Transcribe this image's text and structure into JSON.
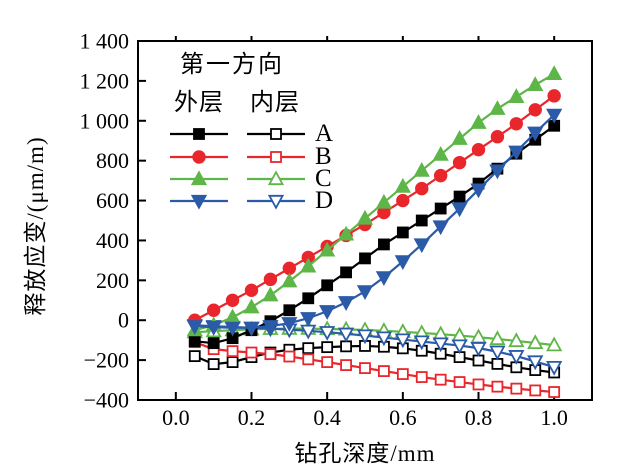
{
  "chart_data": {
    "type": "line",
    "title": "",
    "xlabel": "钻孔深度/mm",
    "ylabel": "释放应变/(μm/m)",
    "xlim": [
      -0.1,
      1.1
    ],
    "ylim": [
      -400,
      1400
    ],
    "grid": false,
    "xticks": [
      0.0,
      0.2,
      0.4,
      0.6,
      0.8,
      1.0
    ],
    "xtick_labels": [
      "0.0",
      "0.2",
      "0.4",
      "0.6",
      "0.8",
      "1.0"
    ],
    "yticks": [
      -400,
      -200,
      0,
      200,
      400,
      600,
      800,
      1000,
      1200,
      1400
    ],
    "ytick_labels": [
      "−400",
      "−200",
      "0",
      "200",
      "400",
      "600",
      "800",
      "1 000",
      "1 200",
      "1 400"
    ],
    "x": [
      0.05,
      0.1,
      0.15,
      0.2,
      0.25,
      0.3,
      0.35,
      0.4,
      0.45,
      0.5,
      0.55,
      0.6,
      0.65,
      0.7,
      0.75,
      0.8,
      0.85,
      0.9,
      0.95,
      1.0
    ],
    "colors": {
      "A": "#000000",
      "B": "#e8262c",
      "C": "#5eb648",
      "D": "#2b5aa8"
    },
    "legend": {
      "title": "第一方向",
      "col_outer": "外层",
      "col_inner": "内层",
      "position": "top-left-inside",
      "entries": [
        "A",
        "B",
        "C",
        "D"
      ]
    },
    "series": [
      {
        "name": "A-inner",
        "group": "A",
        "layer": "inner",
        "color": "#000000",
        "marker": "square",
        "fill": "open",
        "values": [
          -180,
          -220,
          -210,
          -185,
          -162,
          -148,
          -140,
          -135,
          -131,
          -129,
          -133,
          -141,
          -153,
          -168,
          -185,
          -202,
          -219,
          -236,
          -250,
          -262
        ]
      },
      {
        "name": "B-inner",
        "group": "B",
        "layer": "inner",
        "color": "#e8262c",
        "marker": "square",
        "fill": "open",
        "values": [
          -110,
          -145,
          -155,
          -162,
          -170,
          -182,
          -196,
          -210,
          -225,
          -240,
          -255,
          -270,
          -285,
          -298,
          -310,
          -322,
          -333,
          -343,
          -352,
          -360
        ]
      },
      {
        "name": "C-inner",
        "group": "C",
        "layer": "inner",
        "color": "#5eb648",
        "marker": "triangle-up",
        "fill": "open",
        "values": [
          -60,
          -55,
          -50,
          -46,
          -43,
          -42,
          -42,
          -44,
          -46,
          -49,
          -53,
          -58,
          -64,
          -70,
          -77,
          -85,
          -94,
          -104,
          -114,
          -125
        ]
      },
      {
        "name": "D-inner",
        "group": "D",
        "layer": "inner",
        "color": "#2b5aa8",
        "marker": "triangle-down",
        "fill": "open",
        "values": [
          -25,
          -30,
          -34,
          -38,
          -42,
          -47,
          -53,
          -60,
          -68,
          -77,
          -87,
          -97,
          -107,
          -117,
          -127,
          -140,
          -158,
          -180,
          -207,
          -235
        ]
      },
      {
        "name": "A-outer",
        "group": "A",
        "layer": "outer",
        "color": "#000000",
        "marker": "square",
        "fill": "filled",
        "values": [
          -105,
          -115,
          -90,
          -50,
          -5,
          50,
          110,
          175,
          240,
          310,
          380,
          440,
          500,
          560,
          620,
          685,
          760,
          835,
          905,
          975
        ]
      },
      {
        "name": "B-outer",
        "group": "B",
        "layer": "outer",
        "color": "#e8262c",
        "marker": "circle",
        "fill": "filled",
        "values": [
          0,
          50,
          100,
          150,
          205,
          260,
          315,
          370,
          425,
          480,
          540,
          600,
          660,
          725,
          790,
          855,
          920,
          985,
          1055,
          1125
        ]
      },
      {
        "name": "C-outer",
        "group": "C",
        "layer": "outer",
        "color": "#5eb648",
        "marker": "triangle-up",
        "fill": "filled",
        "values": [
          -50,
          -25,
          15,
          65,
          125,
          195,
          270,
          350,
          430,
          510,
          590,
          670,
          750,
          830,
          910,
          990,
          1060,
          1120,
          1180,
          1235
        ]
      },
      {
        "name": "D-outer",
        "group": "D",
        "layer": "outer",
        "color": "#2b5aa8",
        "marker": "triangle-down",
        "fill": "filled",
        "values": [
          -30,
          -35,
          -38,
          -38,
          -30,
          -15,
          10,
          45,
          90,
          145,
          215,
          295,
          380,
          470,
          560,
          655,
          750,
          845,
          940,
          1030
        ]
      }
    ]
  }
}
